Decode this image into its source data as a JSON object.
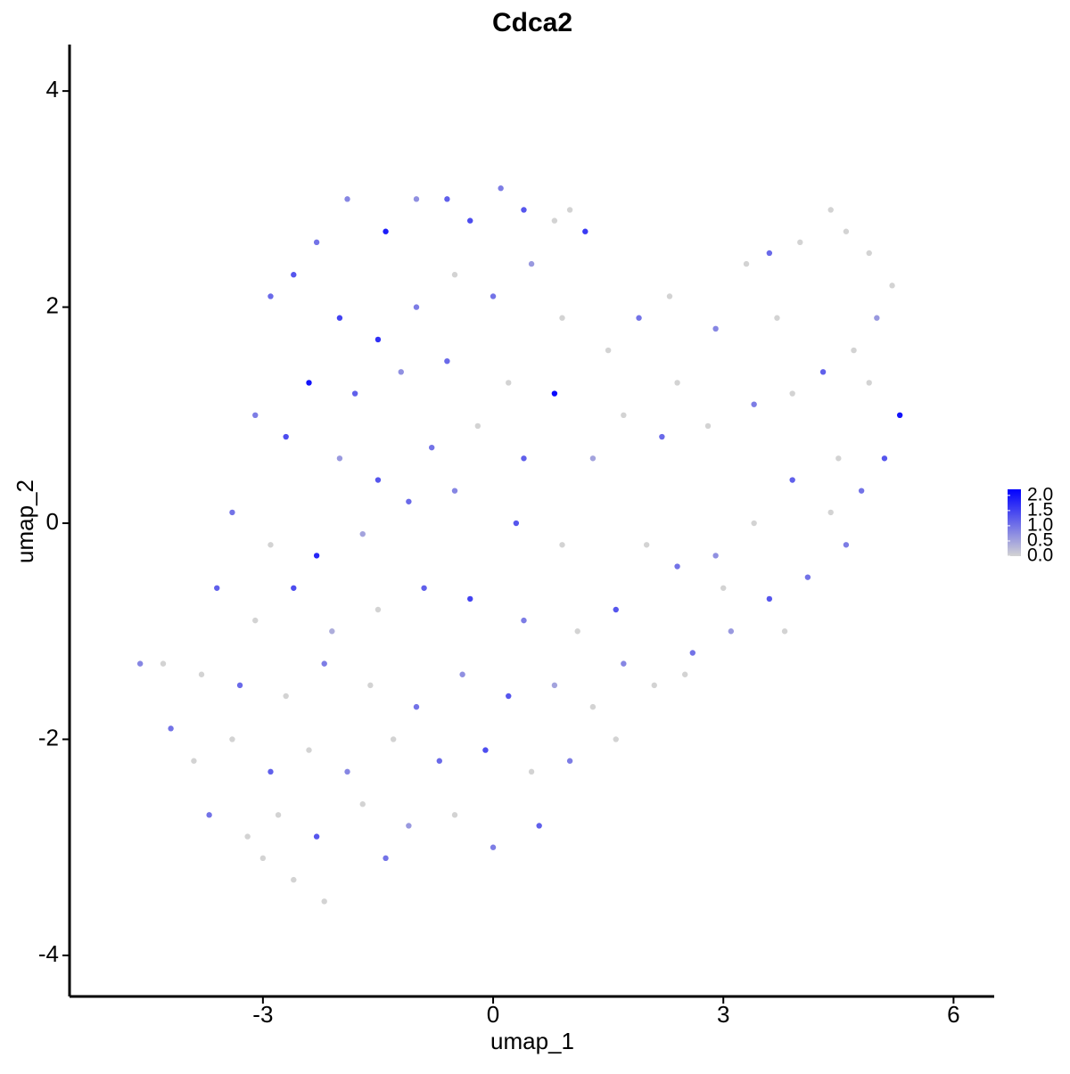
{
  "chart_data": {
    "type": "scatter",
    "title": "Cdca2",
    "x_label": "umap_1",
    "y_label": "umap_2",
    "xlim": [
      -5.52,
      6.53
    ],
    "xticks": [
      -3,
      0,
      3,
      6
    ],
    "ylim": [
      -4.38,
      4.43
    ],
    "yticks": [
      -4,
      -2,
      0,
      2,
      4
    ],
    "x": [
      -2.3,
      -1.9,
      -1.4,
      -1.0,
      -0.6,
      -0.3,
      0.1,
      0.4,
      0.8,
      1.2,
      -2.9,
      -2.6,
      -2.0,
      -1.5,
      -1.0,
      -0.5,
      0.0,
      0.5,
      0.9,
      -2.4,
      -1.8,
      -1.2,
      -0.6,
      0.2,
      0.8,
      -3.1,
      -2.7,
      -2.0,
      -1.5,
      -0.8,
      -0.2,
      0.4,
      -3.4,
      -2.9,
      -2.3,
      -1.7,
      -1.1,
      -0.5,
      0.3,
      0.9,
      -3.6,
      -3.1,
      -2.6,
      -2.1,
      -1.5,
      -0.9,
      -0.3,
      0.4,
      1.1,
      1.6,
      -4.3,
      -4.6,
      -3.8,
      -3.3,
      -2.7,
      -2.2,
      -1.6,
      -1.0,
      -0.4,
      0.2,
      0.8,
      1.3,
      -4.2,
      -3.9,
      -3.4,
      -2.9,
      -2.4,
      -1.9,
      -1.3,
      -0.7,
      -0.1,
      0.5,
      1.0,
      1.6,
      -3.7,
      -3.2,
      -2.8,
      -2.3,
      -1.7,
      -1.1,
      -0.5,
      0.0,
      0.6,
      -2.6,
      -2.2,
      -1.4,
      -3.0,
      1.5,
      1.9,
      2.4,
      2.9,
      3.3,
      3.6,
      4.0,
      4.4,
      4.6,
      4.9,
      5.2,
      5.0,
      4.7,
      4.3,
      3.9,
      3.4,
      2.8,
      2.2,
      1.7,
      1.3,
      5.3,
      5.1,
      4.8,
      4.4,
      3.9,
      3.4,
      2.9,
      2.4,
      2.0,
      4.6,
      4.1,
      3.6,
      3.1,
      2.6,
      2.1,
      1.7,
      2.5,
      3.0,
      3.8,
      4.5,
      4.9,
      3.7,
      2.3,
      1.0
    ],
    "values": [
      2.6,
      3.0,
      2.7,
      3.0,
      3.0,
      2.8,
      3.1,
      2.9,
      2.8,
      2.7,
      2.1,
      2.3,
      1.9,
      1.7,
      2.0,
      2.3,
      2.1,
      2.4,
      1.9,
      1.3,
      1.2,
      1.4,
      1.5,
      1.3,
      1.2,
      1.0,
      0.8,
      0.6,
      0.4,
      0.7,
      0.9,
      0.6,
      0.1,
      -0.2,
      -0.3,
      -0.1,
      0.2,
      0.3,
      0.0,
      -0.2,
      -0.6,
      -0.9,
      -0.6,
      -1.0,
      -0.8,
      -0.6,
      -0.7,
      -0.9,
      -1.0,
      -0.8,
      -1.3,
      -1.3,
      -1.4,
      -1.5,
      -1.6,
      -1.3,
      -1.5,
      -1.7,
      -1.4,
      -1.6,
      -1.5,
      -1.7,
      -1.9,
      -2.2,
      -2.0,
      -2.3,
      -2.1,
      -2.3,
      -2.0,
      -2.2,
      -2.1,
      -2.3,
      -2.2,
      -2.0,
      -2.7,
      -2.9,
      -2.7,
      -2.9,
      -2.6,
      -2.8,
      -2.7,
      -3.0,
      -2.8,
      -3.3,
      -3.5,
      -3.1,
      -3.1,
      1.6,
      1.9,
      1.3,
      1.8,
      2.4,
      2.5,
      2.6,
      2.9,
      2.7,
      2.5,
      2.2,
      1.9,
      1.6,
      1.4,
      1.2,
      1.1,
      0.9,
      0.8,
      1.0,
      0.6,
      1.0,
      0.6,
      0.3,
      0.1,
      0.4,
      0.0,
      -0.3,
      -0.4,
      -0.2,
      -0.2,
      -0.5,
      -0.7,
      -1.0,
      -1.2,
      -1.5,
      -1.3,
      -1.4,
      -0.6,
      -1.0,
      0.6,
      1.3,
      1.9,
      2.1,
      2.9
    ],
    "expression": [
      1.0,
      0.8,
      1.9,
      0.7,
      1.2,
      1.4,
      0.9,
      1.3,
      0,
      1.6,
      1.1,
      1.3,
      1.5,
      1.7,
      0.9,
      0,
      1.0,
      0.6,
      0,
      2.0,
      1.2,
      0.7,
      1.1,
      0,
      2.1,
      0.9,
      1.4,
      0.6,
      1.3,
      1.0,
      0,
      1.2,
      1.0,
      0,
      1.8,
      0.5,
      1.1,
      0.8,
      1.3,
      0,
      1.2,
      0,
      1.4,
      0.4,
      0,
      1.2,
      1.5,
      0.9,
      0,
      1.3,
      0,
      0.8,
      0,
      1.1,
      0,
      0.9,
      0,
      1.0,
      0.7,
      1.3,
      0.5,
      0,
      1.0,
      0,
      0,
      1.2,
      0,
      0.8,
      0,
      1.1,
      1.4,
      0,
      0.9,
      0,
      1.0,
      0,
      0,
      1.3,
      0,
      0.6,
      0,
      0.9,
      1.2,
      0,
      0,
      1.0,
      0,
      0,
      1.0,
      0,
      0.8,
      0,
      1.1,
      0,
      0,
      0,
      0,
      0,
      0.6,
      0,
      1.2,
      0,
      0.9,
      0,
      1.1,
      0,
      0.5,
      2.0,
      1.3,
      1.0,
      0,
      1.2,
      0,
      0.7,
      1.0,
      0,
      0.9,
      1.0,
      1.3,
      0.6,
      1.0,
      0,
      0.8,
      0,
      0,
      0,
      0,
      0,
      0,
      0,
      0
    ],
    "colorscale": {
      "low": "#d3d3d3",
      "high": "#0000ff",
      "limits": [
        0,
        2.2
      ],
      "ticks": [
        {
          "value": 0,
          "label": "0.0"
        },
        {
          "value": 0.5,
          "label": "0.5"
        },
        {
          "value": 1,
          "label": "1.0"
        },
        {
          "value": 1.5,
          "label": "1.5"
        },
        {
          "value": 2,
          "label": "2.0"
        }
      ]
    }
  }
}
